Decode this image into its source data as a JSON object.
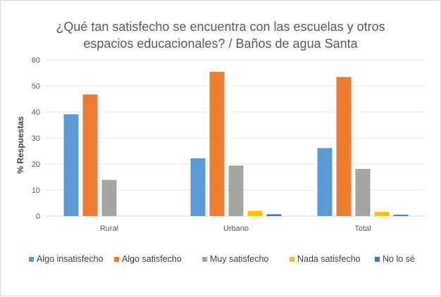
{
  "chart_data": {
    "type": "bar",
    "title_lines": [
      "¿Qué tan satisfecho se encuentra con las escuelas y otros",
      "espacios educacionales? / Baños de agua Santa"
    ],
    "xlabel": "",
    "ylabel": "% Respuestas",
    "ylim": [
      0,
      60
    ],
    "yticks": [
      0,
      10,
      20,
      30,
      40,
      50,
      60
    ],
    "grid": true,
    "legend_position": "bottom",
    "categories": [
      "Rural",
      "Urbano",
      "Total"
    ],
    "series": [
      {
        "name": "Algo insatisfecho",
        "color": "#5b9bd5",
        "values": [
          39.1,
          22.2,
          26.1
        ]
      },
      {
        "name": "Algo satisfecho",
        "color": "#ed7d31",
        "values": [
          46.7,
          55.4,
          53.4
        ]
      },
      {
        "name": "Muy satisfecho",
        "color": "#a5a5a5",
        "values": [
          13.9,
          19.4,
          18.1
        ]
      },
      {
        "name": "Nada satisfecho",
        "color": "#ffc000",
        "values": [
          0,
          2.0,
          1.6
        ]
      },
      {
        "name": "No lo sé",
        "color": "#4472c4",
        "values": [
          0,
          0.7,
          0.5
        ]
      }
    ]
  }
}
